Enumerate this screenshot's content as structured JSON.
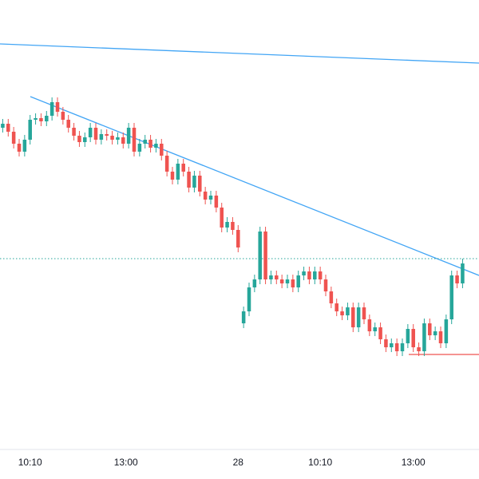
{
  "chart_data": {
    "type": "candlestick",
    "up_color": "#26a69a",
    "down_color": "#ef5350",
    "xlim": [
      -0.5,
      87
    ],
    "ylim": [
      0,
      600
    ],
    "xticks": [
      {
        "value": 5,
        "label": "10:10"
      },
      {
        "value": 22.5,
        "label": "13:00"
      },
      {
        "value": 43,
        "label": "28"
      },
      {
        "value": 58,
        "label": "10:10"
      },
      {
        "value": 75,
        "label": "13:00"
      }
    ],
    "open": [
      440,
      445,
      435,
      420,
      410,
      425,
      450,
      452,
      448,
      455,
      472,
      460,
      450,
      440,
      430,
      422,
      428,
      440,
      425,
      432,
      430,
      425,
      428,
      420,
      440,
      410,
      420,
      425,
      415,
      420,
      405,
      385,
      375,
      395,
      385,
      365,
      380,
      360,
      350,
      355,
      340,
      315,
      322,
      312,
      195,
      210,
      240,
      250,
      310,
      250,
      255,
      250,
      245,
      250,
      240,
      255,
      260,
      250,
      260,
      250,
      235,
      220,
      210,
      205,
      215,
      190,
      215,
      200,
      185,
      190,
      175,
      165,
      170,
      160,
      170,
      188,
      165,
      160,
      195,
      180,
      185,
      170,
      200,
      255,
      245
    ],
    "high": [
      451,
      451,
      441,
      426,
      431,
      456,
      458,
      458,
      461,
      478,
      478,
      466,
      456,
      446,
      436,
      434,
      446,
      446,
      438,
      438,
      436,
      434,
      434,
      446,
      446,
      426,
      431,
      431,
      426,
      426,
      411,
      391,
      401,
      401,
      391,
      386,
      386,
      366,
      361,
      361,
      346,
      328,
      328,
      318,
      216,
      246,
      256,
      316,
      316,
      261,
      261,
      256,
      256,
      256,
      261,
      266,
      266,
      266,
      266,
      256,
      241,
      226,
      216,
      221,
      221,
      221,
      221,
      206,
      196,
      196,
      181,
      176,
      176,
      176,
      194,
      194,
      171,
      201,
      201,
      191,
      191,
      206,
      261,
      261,
      276
    ],
    "low": [
      434,
      429,
      414,
      404,
      404,
      419,
      444,
      442,
      442,
      449,
      454,
      444,
      434,
      424,
      416,
      416,
      422,
      419,
      419,
      424,
      419,
      419,
      414,
      414,
      404,
      404,
      414,
      409,
      409,
      399,
      379,
      369,
      369,
      379,
      359,
      359,
      354,
      344,
      344,
      334,
      309,
      309,
      306,
      284,
      189,
      204,
      234,
      244,
      244,
      244,
      244,
      239,
      239,
      234,
      234,
      249,
      244,
      244,
      244,
      229,
      214,
      204,
      199,
      199,
      184,
      184,
      194,
      179,
      179,
      169,
      159,
      159,
      154,
      154,
      164,
      159,
      154,
      154,
      174,
      174,
      164,
      164,
      194,
      239,
      239
    ],
    "close": [
      445,
      435,
      420,
      410,
      425,
      450,
      452,
      448,
      455,
      472,
      460,
      450,
      440,
      430,
      422,
      428,
      440,
      425,
      432,
      430,
      425,
      428,
      420,
      440,
      410,
      420,
      425,
      415,
      420,
      405,
      385,
      375,
      395,
      385,
      365,
      380,
      360,
      350,
      355,
      340,
      315,
      322,
      312,
      290,
      210,
      240,
      250,
      310,
      250,
      255,
      250,
      245,
      250,
      240,
      255,
      260,
      250,
      260,
      250,
      235,
      220,
      210,
      205,
      215,
      190,
      215,
      200,
      185,
      190,
      175,
      165,
      170,
      160,
      170,
      188,
      165,
      160,
      195,
      180,
      185,
      170,
      200,
      255,
      245,
      270
    ]
  }
}
